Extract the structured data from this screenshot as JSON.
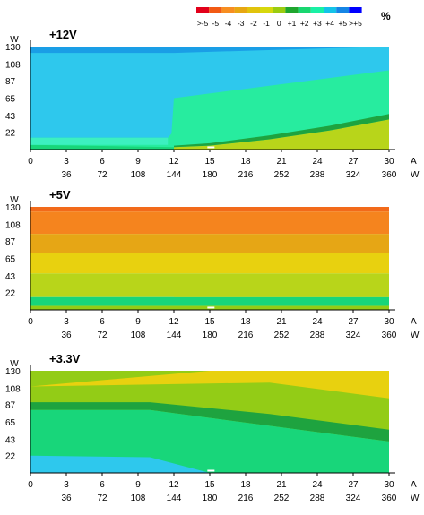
{
  "chart_data": [
    {
      "type": "heatmap",
      "title": "+12V",
      "x_ticks_A": [
        "0",
        "3",
        "6",
        "9",
        "12",
        "15",
        "18",
        "21",
        "24",
        "27",
        "30"
      ],
      "x_unit_A": "A",
      "x_ticks_W": [
        "36",
        "72",
        "108",
        "144",
        "180",
        "216",
        "252",
        "288",
        "324",
        "360"
      ],
      "x_unit_W": "W",
      "y_ticks": [
        "130",
        "108",
        "87",
        "65",
        "43",
        "22"
      ],
      "y_unit": "W",
      "xlim_A": [
        0,
        30
      ],
      "ylim_W": [
        0,
        130
      ],
      "regions": [
        {
          "level": "+3",
          "desc": "upper-left band",
          "boundary": [
            [
              0,
              122
            ],
            [
              3,
              122
            ],
            [
              6,
              122
            ],
            [
              9,
              122
            ],
            [
              12,
              122
            ],
            [
              30,
              130
            ]
          ]
        },
        {
          "level": "+4",
          "desc": "main area left of 12A"
        },
        {
          "level": "+3",
          "desc": "step region right of 12A"
        },
        {
          "level": "+2",
          "desc": "lower-right region"
        },
        {
          "level": "+1",
          "desc": "diagonal band"
        },
        {
          "level": "0",
          "desc": "bottom strip"
        }
      ],
      "boundaries": {
        "b_top": [
          [
            0,
            122
          ],
          [
            12,
            122
          ],
          [
            30,
            130
          ]
        ],
        "b_blue": [
          [
            0,
            15
          ],
          [
            11.5,
            15
          ],
          [
            11.8,
            20
          ],
          [
            12,
            65
          ],
          [
            30,
            100
          ]
        ],
        "b_green_upper": [
          [
            12,
            5
          ],
          [
            15,
            8
          ],
          [
            20,
            18
          ],
          [
            25,
            30
          ],
          [
            30,
            45
          ]
        ],
        "b_green_lower": [
          [
            12,
            3
          ],
          [
            15,
            5
          ],
          [
            20,
            13
          ],
          [
            25,
            24
          ],
          [
            30,
            38
          ]
        ],
        "b_bottom": [
          [
            0,
            6
          ],
          [
            30,
            6
          ]
        ]
      }
    },
    {
      "type": "heatmap",
      "title": "+5V",
      "x_ticks_A": [
        "0",
        "3",
        "6",
        "9",
        "12",
        "15",
        "18",
        "21",
        "24",
        "27",
        "30"
      ],
      "x_unit_A": "A",
      "x_ticks_W": [
        "36",
        "72",
        "108",
        "144",
        "180",
        "216",
        "252",
        "288",
        "324",
        "360"
      ],
      "x_unit_W": "W",
      "y_ticks": [
        "130",
        "108",
        "87",
        "65",
        "43",
        "22"
      ],
      "y_unit": "W",
      "xlim_A": [
        0,
        30
      ],
      "ylim_W": [
        0,
        130
      ],
      "bands": [
        {
          "level": "-4",
          "from": 124,
          "to": 130
        },
        {
          "level": "-3",
          "from": 96,
          "to": 124
        },
        {
          "level": "-2",
          "from": 72,
          "to": 96
        },
        {
          "level": "-1",
          "from": 46,
          "to": 72
        },
        {
          "level": "0",
          "from": 16,
          "to": 46
        },
        {
          "level": "+1",
          "from": 5,
          "to": 16
        },
        {
          "level": "0",
          "from": 0,
          "to": 5
        }
      ]
    },
    {
      "type": "heatmap",
      "title": "+3.3V",
      "x_ticks_A": [
        "0",
        "3",
        "6",
        "9",
        "12",
        "15",
        "18",
        "21",
        "24",
        "27",
        "30"
      ],
      "x_unit_A": "A",
      "x_ticks_W": [
        "36",
        "72",
        "108",
        "144",
        "180",
        "216",
        "252",
        "288",
        "324",
        "360"
      ],
      "x_unit_W": "W",
      "y_ticks": [
        "130",
        "108",
        "87",
        "65",
        "43",
        "22"
      ],
      "y_unit": "W",
      "xlim_A": [
        0,
        30
      ],
      "ylim_W": [
        0,
        130
      ],
      "bands": [
        {
          "level": "-1",
          "desc": "top-right"
        },
        {
          "level": "0",
          "desc": "upper band"
        },
        {
          "level": "+1",
          "desc": "diagonal band"
        },
        {
          "level": "+2",
          "desc": "lower band"
        },
        {
          "level": "+3",
          "desc": "bottom-left"
        }
      ]
    }
  ],
  "legend": {
    "labels": [
      ">-5",
      "-5",
      "-4",
      "-3",
      "-2",
      "-1",
      "0",
      "+1",
      "+2",
      "+3",
      "+4",
      "+5",
      ">+5"
    ],
    "colors": [
      "#e2001b",
      "#f25a14",
      "#f78e21",
      "#e7a712",
      "#e1c30c",
      "#d7d80d",
      "#9bcc10",
      "#1fa62e",
      "#18d670",
      "#19f0a5",
      "#14c3e8",
      "#1585e5",
      "#0000ff"
    ],
    "unit": "%"
  },
  "colors": {
    "level_m4": "#f26a1a",
    "level_m3": "#f5841e",
    "level_m2": "#e6a615",
    "level_m1": "#e8d10f",
    "level_0": "#b8d51a",
    "level_0_green": "#93cc16",
    "level_p1": "#1ea33f",
    "level_p1b": "#18d67a",
    "level_p2": "#27ec9f",
    "level_p3": "#3cf0c0",
    "level_p4": "#2ec8ed",
    "level_p4_top": "#1a9ee6"
  }
}
